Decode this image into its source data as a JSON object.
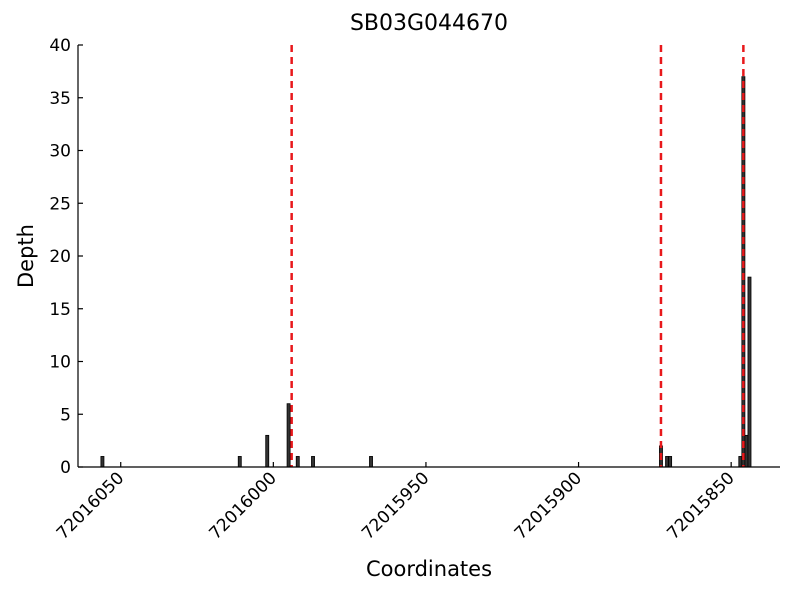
{
  "chart_data": {
    "type": "bar",
    "title": "SB03G044670",
    "x_label": "Coordinates",
    "y_label": "Depth",
    "x": [
      72016056,
      72016011,
      72016002,
      72015995,
      72015992,
      72015987,
      72015968,
      72015873,
      72015871,
      72015870,
      72015847,
      72015846,
      72015845,
      72015844
    ],
    "values": [
      1,
      1,
      3,
      6,
      1,
      1,
      1,
      2,
      1,
      1,
      1,
      37,
      3,
      18
    ],
    "color": "#333333",
    "xlim": [
      72016064,
      72015834
    ],
    "xticks": [
      72016050,
      72016000,
      72015950,
      72015900,
      72015850
    ],
    "ylim": [
      0,
      40
    ],
    "yticks": [
      0,
      5,
      10,
      15,
      20,
      25,
      30,
      35,
      40
    ],
    "vlines": [
      72015994,
      72015873,
      72015846
    ],
    "vline_color": "#e8181b"
  }
}
